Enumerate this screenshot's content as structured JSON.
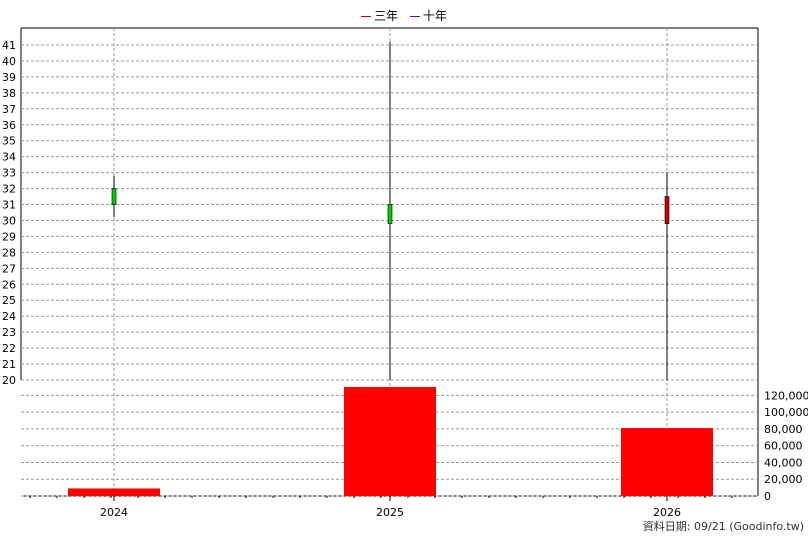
{
  "legend": [
    {
      "label": "三年",
      "color": "#cc0000"
    },
    {
      "label": "十年",
      "color": "#6600cc"
    }
  ],
  "footer": "資料日期: 09/21  (Goodinfo.tw)",
  "chart_data": [
    {
      "type": "candlestick",
      "categories": [
        "2024",
        "2025",
        "2026"
      ],
      "ylim": [
        20,
        41
      ],
      "yticks": [
        20,
        21,
        22,
        23,
        24,
        25,
        26,
        27,
        28,
        29,
        30,
        31,
        32,
        33,
        34,
        35,
        36,
        37,
        38,
        39,
        40,
        41
      ],
      "grid": true,
      "candles": [
        {
          "x": "2024",
          "open": 31.0,
          "close": 32.0,
          "high": 32.8,
          "low": 30.2,
          "color": "#00cc00"
        },
        {
          "x": "2025",
          "open": 29.8,
          "close": 31.0,
          "high": 41.2,
          "low": 20.0,
          "color": "#00cc00"
        },
        {
          "x": "2026",
          "open": 31.5,
          "close": 29.8,
          "high": 33.0,
          "low": 20.0,
          "color": "#cc0000"
        }
      ]
    },
    {
      "type": "bar",
      "categories": [
        "2024",
        "2025",
        "2026"
      ],
      "values": [
        9000,
        130000,
        81000
      ],
      "color": "#ff0000",
      "ylim": [
        0,
        130000
      ],
      "yticks": [
        "0",
        "20,000",
        "40,000",
        "60,000",
        "80,000",
        "100,000",
        "120,000"
      ],
      "ytick_values": [
        0,
        20000,
        40000,
        60000,
        80000,
        100000,
        120000
      ],
      "grid": true
    }
  ]
}
